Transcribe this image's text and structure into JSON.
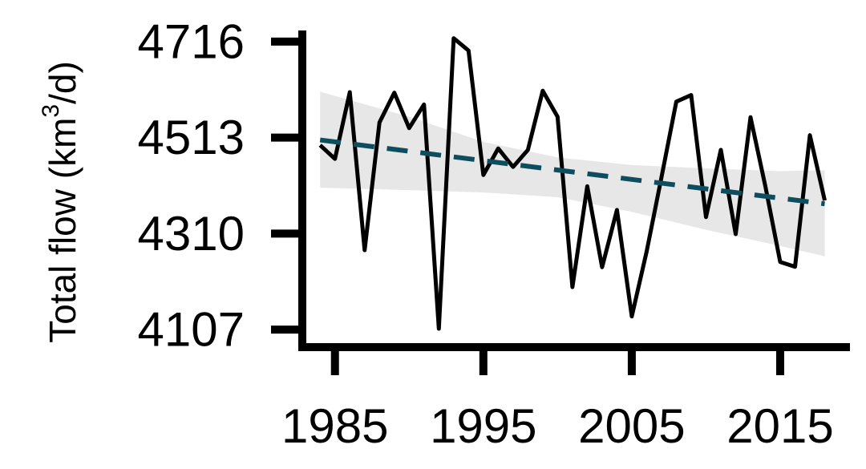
{
  "chart_data": {
    "type": "line",
    "title": "",
    "xlabel": "",
    "ylabel": "Total flow (km",
    "ylabel_sup": "3",
    "ylabel_suffix": "/d)",
    "xlim": [
      1982.8,
      2019.7
    ],
    "ylim": [
      4070,
      4770
    ],
    "x_ticks": [
      1985,
      1995,
      2005,
      2015
    ],
    "y_ticks": [
      4107,
      4310,
      4513,
      4716
    ],
    "grid": false,
    "series": [
      {
        "kind": "observed",
        "color": "#000000",
        "x": [
          1984,
          1985,
          1986,
          1987,
          1988,
          1989,
          1990,
          1991,
          1992,
          1993,
          1994,
          1995,
          1996,
          1997,
          1998,
          1999,
          2000,
          2001,
          2002,
          2003,
          2004,
          2005,
          2006,
          2007,
          2008,
          2009,
          2010,
          2011,
          2012,
          2013,
          2014,
          2015,
          2016,
          2017,
          2018
        ],
        "y": [
          4497,
          4468,
          4609,
          4275,
          4545,
          4608,
          4533,
          4583,
          4109,
          4723,
          4697,
          4434,
          4490,
          4451,
          4487,
          4612,
          4557,
          4197,
          4410,
          4239,
          4360,
          4135,
          4272,
          4429,
          4589,
          4603,
          4345,
          4487,
          4309,
          4556,
          4410,
          4250,
          4240,
          4518,
          4380
        ]
      },
      {
        "kind": "trend",
        "color": "#0d4d5e",
        "x": [
          1984,
          2018
        ],
        "y": [
          4508,
          4373
        ]
      }
    ],
    "confidence_band": {
      "color": "#d3d3d3",
      "x": [
        1984,
        1990,
        1995,
        2000,
        2005,
        2010,
        2015,
        2018
      ],
      "lower": [
        4407,
        4402,
        4397,
        4387,
        4356,
        4318,
        4284,
        4262
      ],
      "upper": [
        4610,
        4557,
        4504,
        4471,
        4455,
        4448,
        4442,
        4444
      ]
    }
  }
}
